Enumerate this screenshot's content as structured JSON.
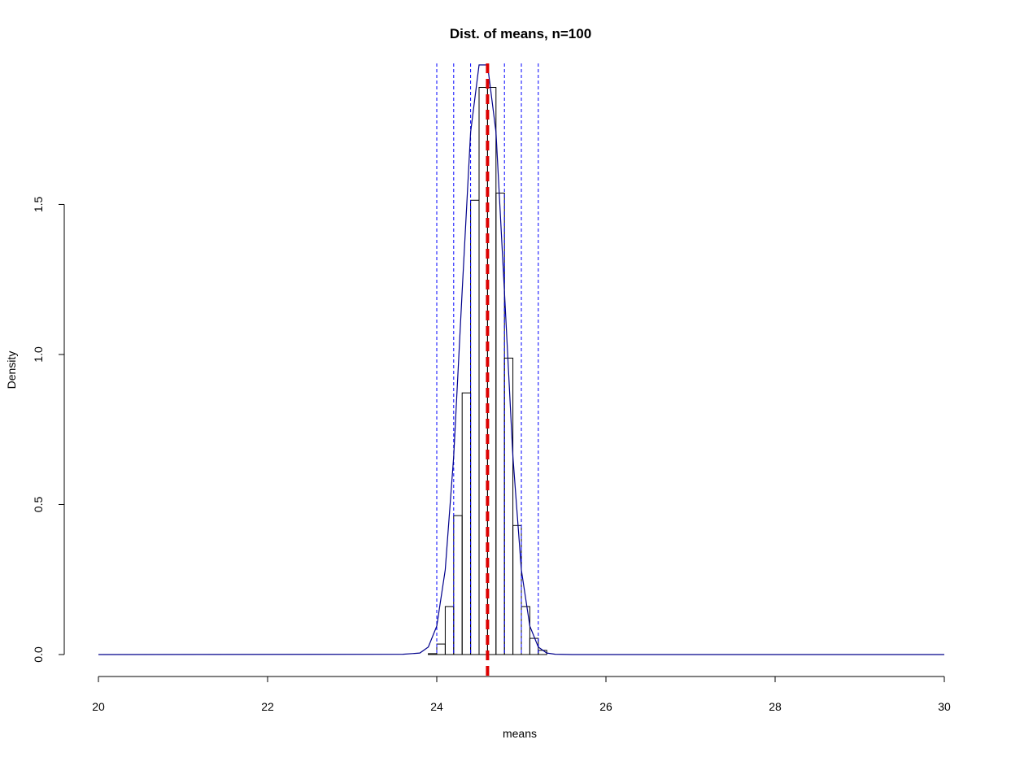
{
  "chart_data": {
    "type": "histogram",
    "title": "Dist. of means, n=100",
    "x_label": "means",
    "y_label": "Density",
    "bins": [
      23.9,
      24.0,
      24.1,
      24.2,
      24.3,
      24.4,
      24.5,
      24.6,
      24.7,
      24.8,
      24.9,
      25.0,
      25.1,
      25.2,
      25.3
    ],
    "values": [
      0.003,
      0.035,
      0.16,
      0.463,
      0.872,
      1.514,
      1.89,
      1.89,
      1.538,
      0.988,
      0.43,
      0.16,
      0.054,
      0.014
    ],
    "bar_color": "#000000",
    "density": {
      "color": "#00008b",
      "x": [
        20,
        23.6,
        23.8,
        23.9,
        24.0,
        24.1,
        24.2,
        24.3,
        24.4,
        24.5,
        24.6,
        24.7,
        24.8,
        24.9,
        25.0,
        25.1,
        25.2,
        25.3,
        25.4,
        25.6,
        30
      ],
      "y": [
        0,
        0.001,
        0.005,
        0.025,
        0.095,
        0.282,
        0.66,
        1.21,
        1.741,
        1.965,
        1.965,
        1.741,
        1.21,
        0.66,
        0.282,
        0.095,
        0.025,
        0.005,
        0.001,
        0,
        0
      ]
    },
    "vlines": {
      "color": "#0000ff",
      "values": [
        24.0,
        24.2,
        24.4,
        24.8,
        25.0,
        25.2
      ]
    },
    "mean_line": {
      "color": "#dd0000",
      "value": 24.6
    },
    "xlim": [
      20,
      30
    ],
    "ylim": [
      0,
      1.97
    ],
    "xticks": [
      20,
      22,
      24,
      26,
      28,
      30
    ],
    "yticks": [
      {
        "value": 0,
        "label": "0.0"
      },
      {
        "value": 0.5,
        "label": "0.5"
      },
      {
        "value": 1,
        "label": "1.0"
      },
      {
        "value": 1.5,
        "label": "1.5"
      }
    ]
  }
}
